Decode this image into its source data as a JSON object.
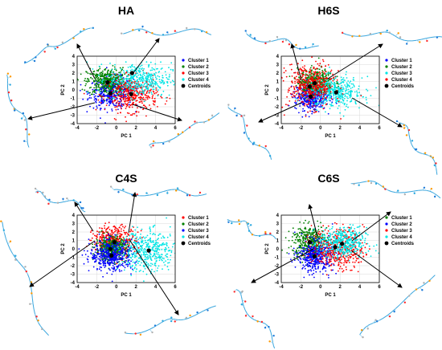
{
  "chart_data": [
    {
      "type": "scatter",
      "title": "HA",
      "xlabel": "PC 1",
      "ylabel": "PC 2",
      "xlim": [
        -4,
        6
      ],
      "ylim": [
        -4,
        4
      ],
      "xticks": [
        "-4",
        "-2",
        "0",
        "2",
        "4",
        "6"
      ],
      "yticks": [
        "-4",
        "-3",
        "-2",
        "-1",
        "0",
        "1",
        "2",
        "3",
        "4"
      ],
      "grid": true,
      "legend_position": "right",
      "series": [
        {
          "name": "Cluster 1",
          "color": "#0000ff",
          "center": [
            -0.5,
            -0.3
          ],
          "spread": [
            1.1,
            0.9
          ]
        },
        {
          "name": "Cluster 2",
          "color": "#008000",
          "center": [
            -1.0,
            1.0
          ],
          "spread": [
            1.0,
            0.8
          ]
        },
        {
          "name": "Cluster 3",
          "color": "#ff0000",
          "center": [
            1.6,
            -0.6
          ],
          "spread": [
            1.3,
            1.0
          ]
        },
        {
          "name": "Cluster 4",
          "color": "#00e5e5",
          "center": [
            2.4,
            1.2
          ],
          "spread": [
            1.6,
            1.0
          ]
        }
      ],
      "centroids": {
        "label": "Centroids",
        "points": [
          [
            -0.6,
            -0.4
          ],
          [
            -0.9,
            0.9
          ],
          [
            1.5,
            -0.5
          ],
          [
            1.6,
            2.0
          ]
        ]
      }
    },
    {
      "type": "scatter",
      "title": "H6S",
      "xlabel": "PC 1",
      "ylabel": "PC 2",
      "xlim": [
        -4,
        6
      ],
      "ylim": [
        -4,
        4
      ],
      "xticks": [
        "-4",
        "-2",
        "0",
        "2",
        "4",
        "6"
      ],
      "yticks": [
        "-4",
        "-3",
        "-2",
        "-1",
        "0",
        "1",
        "2",
        "3",
        "4"
      ],
      "grid": true,
      "legend_position": "right",
      "series": [
        {
          "name": "Cluster 1",
          "color": "#0000ff",
          "center": [
            -1.0,
            -0.8
          ],
          "spread": [
            0.8,
            0.8
          ]
        },
        {
          "name": "Cluster 2",
          "color": "#008000",
          "center": [
            -0.5,
            0.9
          ],
          "spread": [
            0.9,
            0.8
          ]
        },
        {
          "name": "Cluster 3",
          "color": "#00e5e5",
          "center": [
            1.5,
            -0.3
          ],
          "spread": [
            1.4,
            0.9
          ]
        },
        {
          "name": "Cluster 4",
          "color": "#ff0000",
          "center": [
            -1.0,
            0.5
          ],
          "spread": [
            1.2,
            1.3
          ]
        }
      ],
      "centroids": {
        "label": "Centroids",
        "points": [
          [
            -1.0,
            -0.8
          ],
          [
            -0.6,
            0.8
          ],
          [
            1.6,
            -0.3
          ],
          [
            -1.1,
            0.4
          ]
        ]
      }
    },
    {
      "type": "scatter",
      "title": "C4S",
      "xlabel": "PC 1",
      "ylabel": "PC 2",
      "xlim": [
        -4,
        6
      ],
      "ylim": [
        -4,
        4
      ],
      "xticks": [
        "-4",
        "-2",
        "0",
        "2",
        "4",
        "6"
      ],
      "yticks": [
        "-4",
        "-3",
        "-2",
        "-1",
        "0",
        "1",
        "2",
        "3",
        "4"
      ],
      "grid": true,
      "legend_position": "right",
      "series": [
        {
          "name": "Cluster 1",
          "color": "#ff0000",
          "center": [
            -0.2,
            0.9
          ],
          "spread": [
            1.1,
            0.9
          ]
        },
        {
          "name": "Cluster 2",
          "color": "#008000",
          "center": [
            -0.5,
            0.0
          ],
          "spread": [
            0.8,
            0.7
          ]
        },
        {
          "name": "Cluster 3",
          "color": "#0000ff",
          "center": [
            -0.5,
            -0.8
          ],
          "spread": [
            1.1,
            0.9
          ]
        },
        {
          "name": "Cluster 4",
          "color": "#00e5e5",
          "center": [
            3.3,
            -0.3
          ],
          "spread": [
            1.5,
            1.2
          ]
        }
      ],
      "centroids": {
        "label": "Centroids",
        "points": [
          [
            -0.2,
            0.8
          ],
          [
            -0.6,
            0.0
          ],
          [
            -0.5,
            -0.8
          ],
          [
            3.3,
            -0.2
          ]
        ]
      }
    },
    {
      "type": "scatter",
      "title": "C6S",
      "xlabel": "PC 1",
      "ylabel": "PC 2",
      "xlim": [
        -4,
        6
      ],
      "ylim": [
        -4,
        4
      ],
      "xticks": [
        "-4",
        "-2",
        "0",
        "2",
        "4",
        "6"
      ],
      "yticks": [
        "-4",
        "-3",
        "-2",
        "-1",
        "0",
        "1",
        "2",
        "3",
        "4"
      ],
      "grid": true,
      "legend_position": "right",
      "series": [
        {
          "name": "Cluster 1",
          "color": "#008000",
          "center": [
            -1.1,
            0.8
          ],
          "spread": [
            0.9,
            1.0
          ]
        },
        {
          "name": "Cluster 2",
          "color": "#0000ff",
          "center": [
            -0.5,
            -0.9
          ],
          "spread": [
            0.9,
            0.9
          ]
        },
        {
          "name": "Cluster 3",
          "color": "#ff0000",
          "center": [
            1.8,
            0.0
          ],
          "spread": [
            1.3,
            1.2
          ]
        },
        {
          "name": "Cluster 4",
          "color": "#00e5e5",
          "center": [
            2.3,
            0.7
          ],
          "spread": [
            1.2,
            0.9
          ]
        }
      ],
      "centroids": {
        "label": "Centroids",
        "points": [
          [
            -1.1,
            0.8
          ],
          [
            -0.6,
            -0.9
          ],
          [
            1.5,
            0.2
          ],
          [
            2.2,
            0.6
          ]
        ]
      }
    }
  ]
}
